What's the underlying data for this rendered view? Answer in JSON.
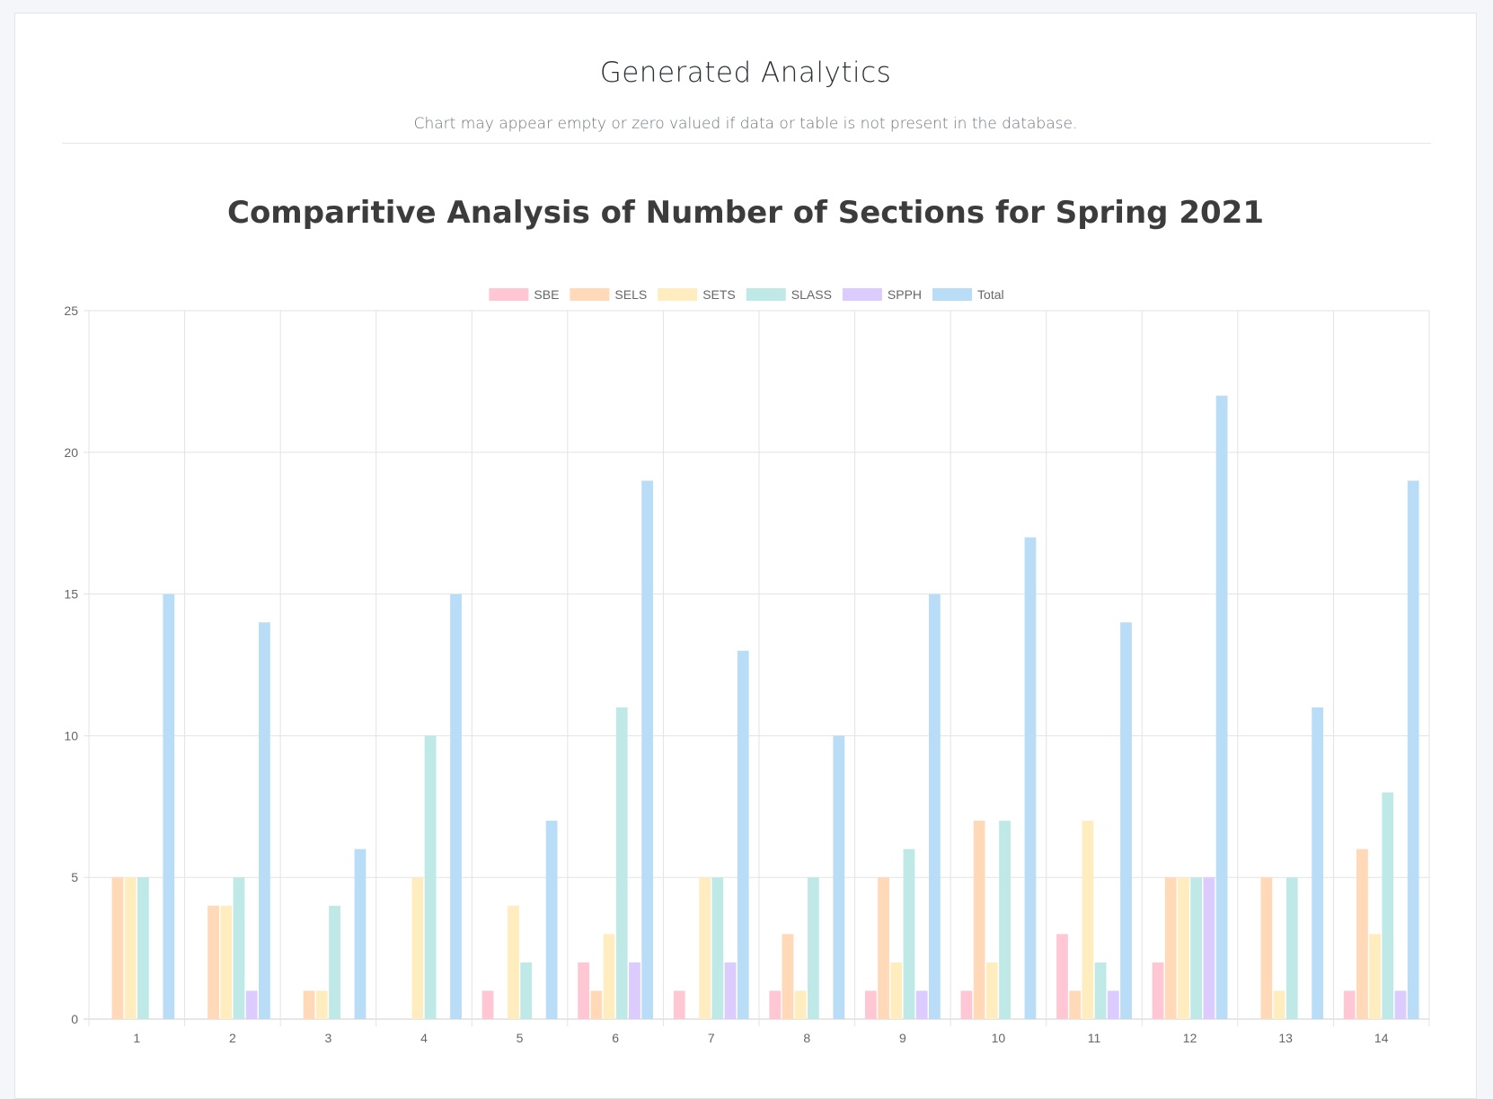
{
  "header": {
    "title": "Generated Analytics",
    "subtitle": "Chart may appear empty or zero valued if data or table is not present in the database."
  },
  "chart_data": {
    "type": "bar",
    "title": "Comparitive Analysis of Number of Sections for Spring 2021",
    "xlabel": "",
    "ylabel": "",
    "ylim": [
      0,
      25
    ],
    "yticks": [
      0,
      5,
      10,
      15,
      20,
      25
    ],
    "grid": true,
    "legend_position": "top",
    "categories": [
      "1",
      "2",
      "3",
      "4",
      "5",
      "6",
      "7",
      "8",
      "9",
      "10",
      "11",
      "12",
      "13",
      "14"
    ],
    "series": [
      {
        "name": "SBE",
        "color": "#ffc7d4",
        "values": [
          0,
          0,
          0,
          0,
          1,
          2,
          1,
          1,
          1,
          1,
          3,
          2,
          0,
          1
        ]
      },
      {
        "name": "SELS",
        "color": "#ffd9b8",
        "values": [
          5,
          4,
          1,
          0,
          0,
          1,
          0,
          3,
          5,
          7,
          1,
          5,
          5,
          6
        ]
      },
      {
        "name": "SETS",
        "color": "#ffecbf",
        "values": [
          5,
          4,
          1,
          5,
          4,
          3,
          5,
          1,
          2,
          2,
          7,
          5,
          1,
          3
        ]
      },
      {
        "name": "SLASS",
        "color": "#bfe9e6",
        "values": [
          5,
          5,
          4,
          10,
          2,
          11,
          5,
          5,
          6,
          7,
          2,
          5,
          5,
          8
        ]
      },
      {
        "name": "SPPH",
        "color": "#dccbff",
        "values": [
          0,
          1,
          0,
          0,
          0,
          2,
          2,
          0,
          1,
          0,
          1,
          5,
          0,
          1
        ]
      },
      {
        "name": "Total",
        "color": "#b9ddf6",
        "values": [
          15,
          14,
          6,
          15,
          7,
          19,
          13,
          10,
          15,
          17,
          14,
          22,
          11,
          19
        ]
      }
    ]
  }
}
